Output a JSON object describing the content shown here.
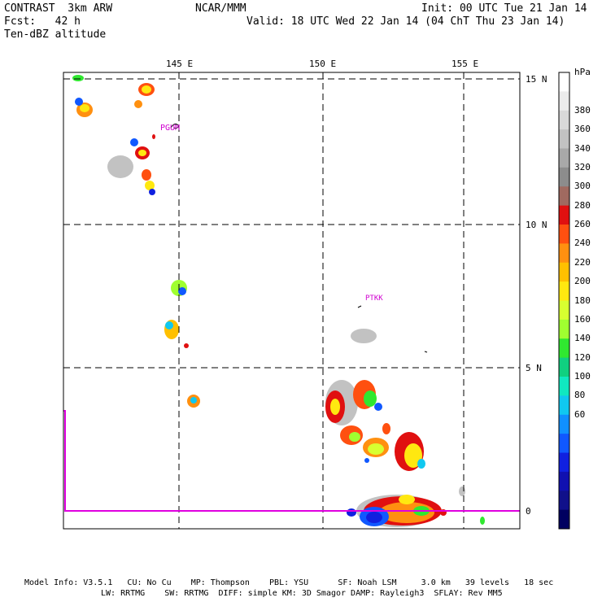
{
  "header": {
    "line1_left": "CONTRAST  3km ARW",
    "line1_center": "NCAR/MMM",
    "line1_right": "Init: 00 UTC Tue 21 Jan 14",
    "line2_left": "Fcst:   42 h",
    "line2_right": "Valid: 18 UTC Wed 22 Jan 14 (04 ChT Thu 23 Jan 14)",
    "line3_left": "Ten-dBZ altitude"
  },
  "map": {
    "lon_labels": [
      "145 E",
      "150 E",
      "155 E"
    ],
    "lat_labels": [
      "15 N",
      "10 N",
      "5 N",
      "0"
    ],
    "stations": [
      "PGUM",
      "PTKK"
    ],
    "boundary_color": "#e000e0"
  },
  "colorbar": {
    "unit": "hPa",
    "labels": [
      "380",
      "360",
      "340",
      "320",
      "300",
      "280",
      "260",
      "240",
      "220",
      "200",
      "180",
      "160",
      "140",
      "120",
      "100",
      "80",
      "60"
    ],
    "colors": [
      "#ffffff",
      "#ececec",
      "#d9d9d9",
      "#c2c2c2",
      "#a8a8a8",
      "#8c8c8c",
      "#a06a60",
      "#e01010",
      "#ff5010",
      "#ff9010",
      "#ffc000",
      "#ffe810",
      "#d8ff30",
      "#a0ff30",
      "#30e830",
      "#10d080",
      "#10e8c0",
      "#10c8f0",
      "#1090ff",
      "#1058ff",
      "#1020e0",
      "#1010b0",
      "#10108a",
      "#000060"
    ]
  },
  "footer": {
    "line1": "Model Info: V3.5.1   CU: No Cu    MP: Thompson    PBL: YSU      SF: Noah LSM     3.0 km   39 levels   18 sec",
    "line2": "LW: RRTMG    SW: RRTMG  DIFF: simple KM: 3D Smagor DAMP: Rayleigh3  SFLAY: Rev MM5"
  }
}
